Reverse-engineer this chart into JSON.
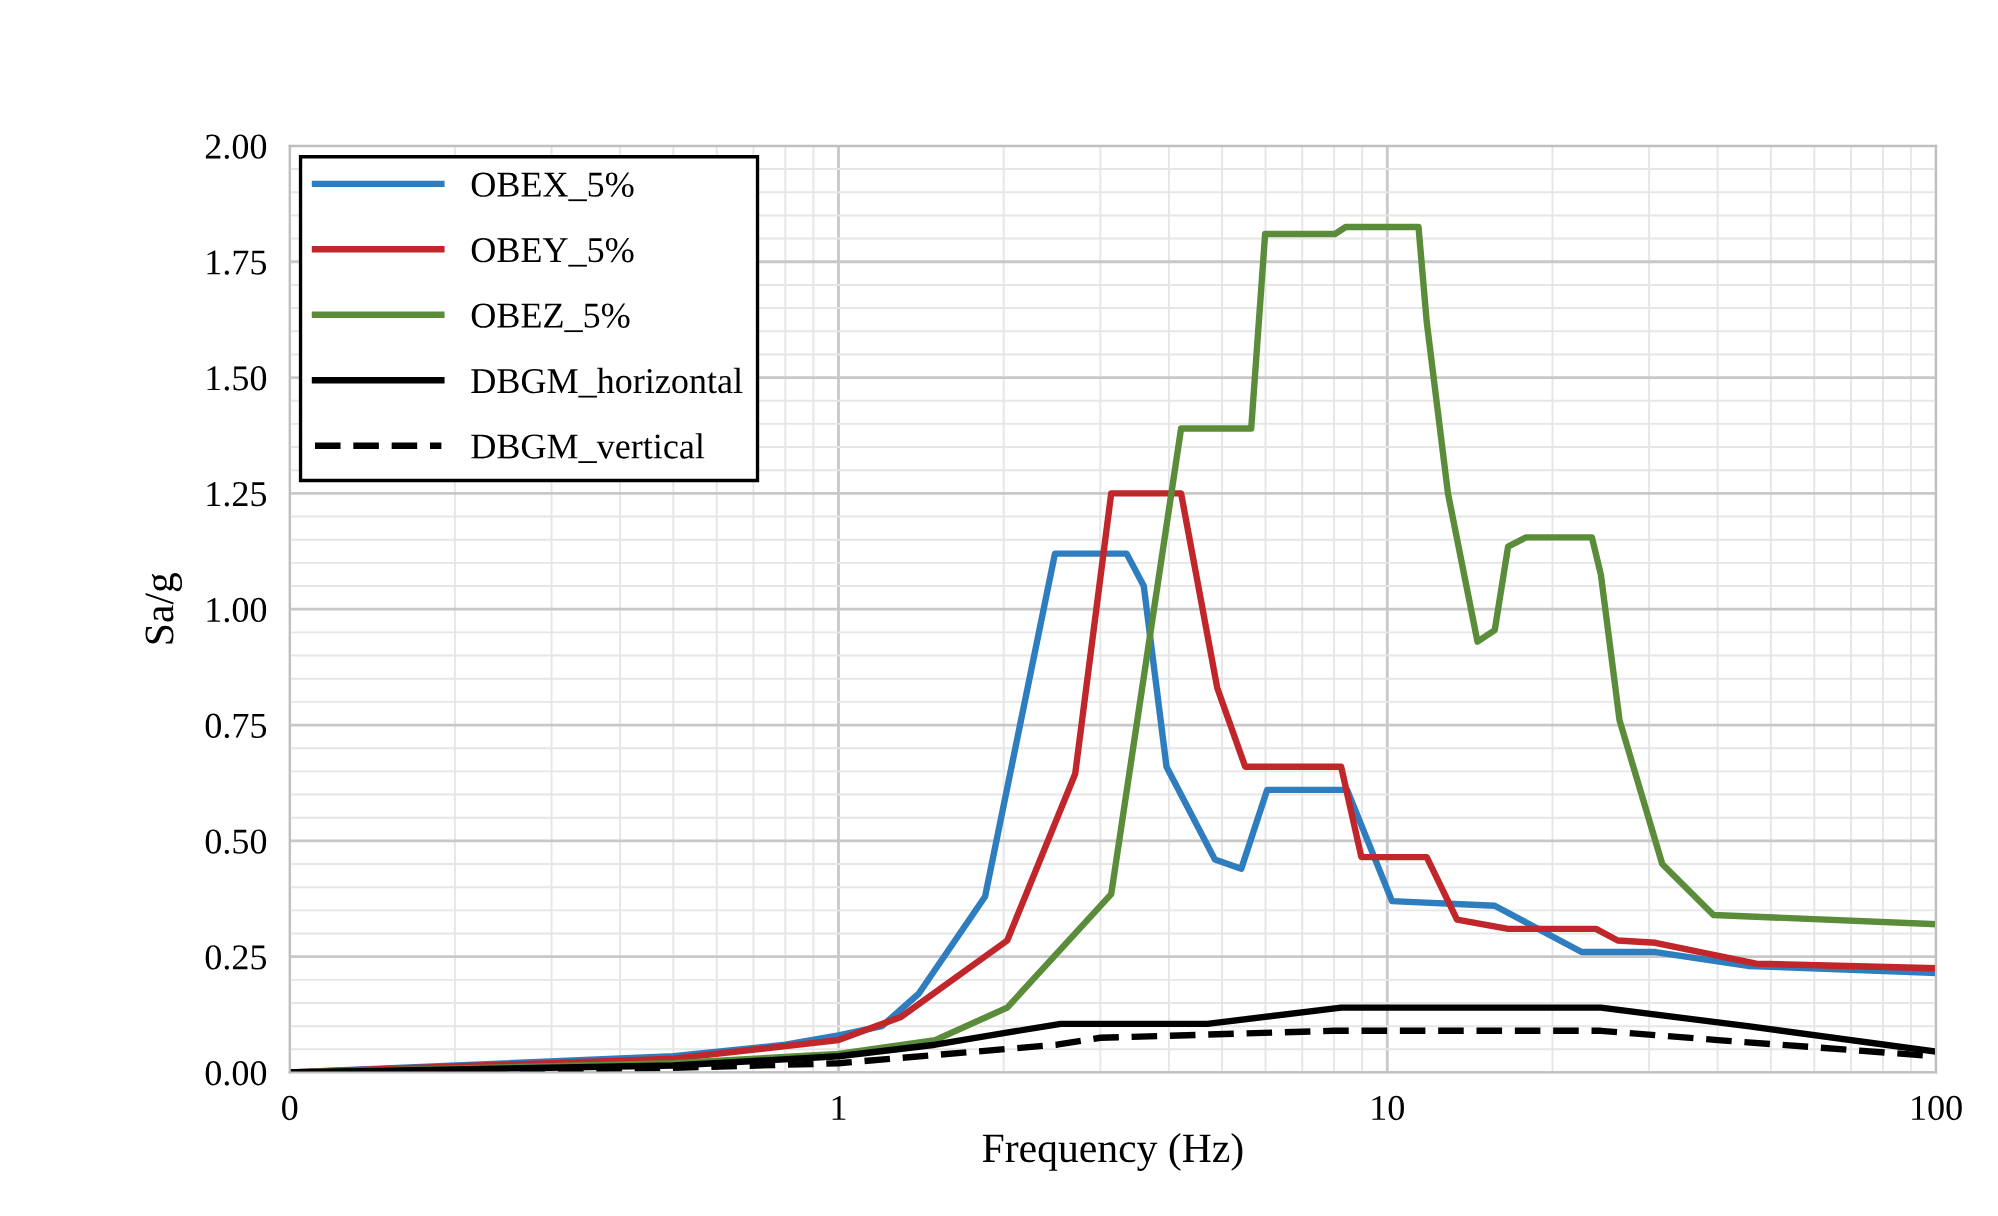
{
  "chart_data": {
    "type": "line",
    "xlabel": "Frequency (Hz)",
    "ylabel": "Sa/g",
    "log": "x",
    "grid": true,
    "legend": "top left",
    "marker": "none",
    "xlim": [
      0.1,
      100
    ],
    "xticks": [
      {
        "value": 0.1,
        "label": "0"
      },
      1,
      10,
      100
    ],
    "ylim": [
      0,
      2
    ],
    "yticks": [
      {
        "value": 0,
        "label": "0.00"
      },
      0.25,
      {
        "value": 0.5,
        "label": "0.50"
      },
      0.75,
      {
        "value": 1,
        "label": "1.00"
      },
      1.25,
      {
        "value": 1.5,
        "label": "1.50"
      },
      1.75,
      {
        "value": 2,
        "label": "2.00"
      }
    ],
    "series": [
      {
        "name": "OBEX_5%",
        "color": "#2e7ebf",
        "line_style": "solid",
        "x": [
          0.1,
          0.5,
          0.8,
          1,
          1.2,
          1.4,
          1.85,
          2.48,
          3.35,
          3.6,
          3.96,
          4.85,
          5.42,
          6.04,
          8.45,
          10.2,
          15.7,
          22.6,
          30.8,
          45.4,
          100
        ],
        "values": [
          0,
          0.035,
          0.06,
          0.08,
          0.1,
          0.17,
          0.38,
          1.12,
          1.12,
          1.05,
          0.66,
          0.46,
          0.44,
          0.61,
          0.61,
          0.37,
          0.36,
          0.26,
          0.26,
          0.23,
          0.215
        ]
      },
      {
        "name": "OBEY_5%",
        "color": "#c0262a",
        "line_style": "solid",
        "x": [
          0.1,
          0.5,
          1,
          1.3,
          2.03,
          2.7,
          3.14,
          4.21,
          4.9,
          5.51,
          8.24,
          8.97,
          11.8,
          13.4,
          16.6,
          24,
          26.3,
          30.8,
          47,
          100
        ],
        "values": [
          0,
          0.03,
          0.07,
          0.12,
          0.285,
          0.645,
          1.25,
          1.25,
          0.83,
          0.66,
          0.66,
          0.465,
          0.465,
          0.33,
          0.31,
          0.31,
          0.285,
          0.28,
          0.235,
          0.225
        ]
      },
      {
        "name": "OBEZ_5%",
        "color": "#5b8c3a",
        "line_style": "solid",
        "x": [
          0.1,
          0.5,
          1,
          1.5,
          2.03,
          3.14,
          4.21,
          5.65,
          5.99,
          8.03,
          8.4,
          11.4,
          11.8,
          12.9,
          14.6,
          15.7,
          16.6,
          17.9,
          23.6,
          24.5,
          26.5,
          31.7,
          39.3,
          100
        ],
        "values": [
          0,
          0.02,
          0.04,
          0.07,
          0.14,
          0.385,
          1.39,
          1.39,
          1.81,
          1.81,
          1.825,
          1.825,
          1.62,
          1.25,
          0.93,
          0.955,
          1.135,
          1.155,
          1.155,
          1.075,
          0.76,
          0.45,
          0.34,
          0.32
        ]
      },
      {
        "name": "DBGM_horizontal",
        "color": "#000000",
        "line_style": "solid",
        "x": [
          0.1,
          0.5,
          1,
          1.5,
          2,
          2.54,
          4.7,
          8.24,
          24.5,
          45.4,
          100
        ],
        "values": [
          0,
          0.015,
          0.035,
          0.06,
          0.085,
          0.105,
          0.105,
          0.14,
          0.14,
          0.1,
          0.045
        ]
      },
      {
        "name": "DBGM_vertical",
        "color": "#000000",
        "line_style": "dashed",
        "x": [
          0.1,
          0.5,
          1,
          2.5,
          3,
          8,
          24.5,
          40,
          100
        ],
        "values": [
          0,
          0.01,
          0.02,
          0.06,
          0.075,
          0.09,
          0.09,
          0.07,
          0.035
        ]
      }
    ]
  }
}
